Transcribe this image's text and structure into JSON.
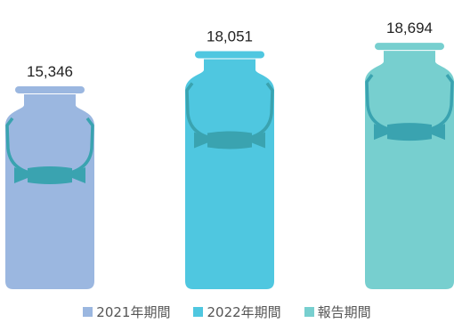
{
  "chart_data": {
    "type": "bar",
    "categories": [
      "2021年期間",
      "2022年期間",
      "報告期間"
    ],
    "values": [
      15346,
      18051,
      18694
    ],
    "value_labels": [
      "15,346",
      "18,051",
      "18,694"
    ],
    "ylim": [
      0,
      19500
    ],
    "grid": false,
    "legend_placement": "bottom",
    "series": [
      {
        "name": "2021年期間",
        "color": "#9bb7e0"
      },
      {
        "name": "2022年期間",
        "color": "#4fc7e0"
      },
      {
        "name": "報告期間",
        "color": "#77cfcf"
      }
    ],
    "handle_color": "#3aa3b0",
    "icon": "milk-can-icon"
  }
}
